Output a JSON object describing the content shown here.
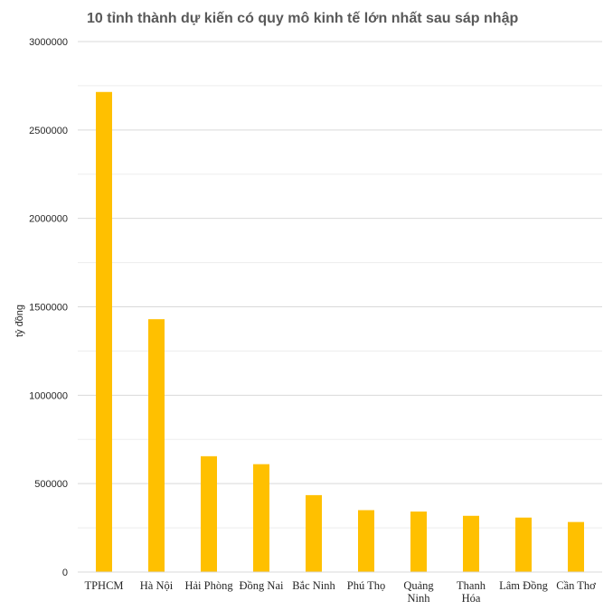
{
  "chart_data": {
    "type": "bar",
    "title": "10 tỉnh thành dự kiến có quy mô kinh tế lớn nhất sau sáp nhập",
    "xlabel": "",
    "ylabel": "tỷ đồng",
    "categories": [
      "TPHCM",
      "Hà Nội",
      "Hải Phòng",
      "Đồng Nai",
      "Bắc Ninh",
      "Phú Thọ",
      "Quảng Ninh",
      "Thanh Hóa",
      "Lâm Đồng",
      "Cần Thơ"
    ],
    "values": [
      2715000,
      1430000,
      655000,
      610000,
      435000,
      350000,
      342000,
      318000,
      308000,
      283000
    ],
    "ylim": [
      0,
      3000000
    ],
    "yticks": [
      "0",
      "500000",
      "1000000",
      "1500000",
      "2000000",
      "2500000",
      "3000000"
    ],
    "bar_color": "#FFC000",
    "major_grid_color": "#D9D9D9",
    "minor_grid_color": "#EDEDED",
    "grid": true,
    "legend": "none"
  }
}
